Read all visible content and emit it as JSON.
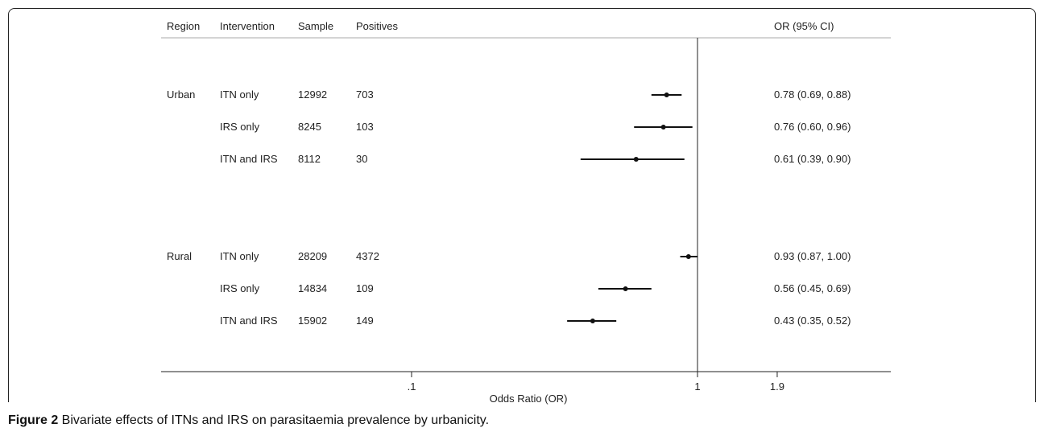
{
  "chart_data": {
    "type": "forest",
    "columns": {
      "region": "Region",
      "intervention": "Intervention",
      "sample": "Sample",
      "positives": "Positives",
      "or_ci": "OR (95% CI)"
    },
    "groups": [
      {
        "region": "Urban",
        "rows": [
          {
            "intervention": "ITN only",
            "sample": "12992",
            "positives": "703",
            "or": 0.78,
            "lo": 0.69,
            "hi": 0.88,
            "label": "0.78 (0.69, 0.88)"
          },
          {
            "intervention": "IRS only",
            "sample": "8245",
            "positives": "103",
            "or": 0.76,
            "lo": 0.6,
            "hi": 0.96,
            "label": "0.76 (0.60, 0.96)"
          },
          {
            "intervention": "ITN and IRS",
            "sample": "8112",
            "positives": "30",
            "or": 0.61,
            "lo": 0.39,
            "hi": 0.9,
            "label": "0.61 (0.39, 0.90)"
          }
        ]
      },
      {
        "region": "Rural",
        "rows": [
          {
            "intervention": "ITN only",
            "sample": "28209",
            "positives": "4372",
            "or": 0.93,
            "lo": 0.87,
            "hi": 1.0,
            "label": "0.93 (0.87, 1.00)"
          },
          {
            "intervention": "IRS only",
            "sample": "14834",
            "positives": "109",
            "or": 0.56,
            "lo": 0.45,
            "hi": 0.69,
            "label": "0.56 (0.45, 0.69)"
          },
          {
            "intervention": "ITN and IRS",
            "sample": "15902",
            "positives": "149",
            "or": 0.43,
            "lo": 0.35,
            "hi": 0.52,
            "label": "0.43 (0.35, 0.52)"
          }
        ]
      }
    ],
    "x_ticks": [
      {
        "value": 0.1,
        "label": ".1"
      },
      {
        "value": 1,
        "label": "1"
      },
      {
        "value": 1.9,
        "label": "1.9"
      }
    ],
    "xlabel": "Odds Ratio (OR)",
    "x_scale": "log",
    "reference_line": 1
  },
  "caption": {
    "label": "Figure 2",
    "text": " Bivariate effects of ITNs and IRS on parasitaemia prevalence by urbanicity."
  }
}
